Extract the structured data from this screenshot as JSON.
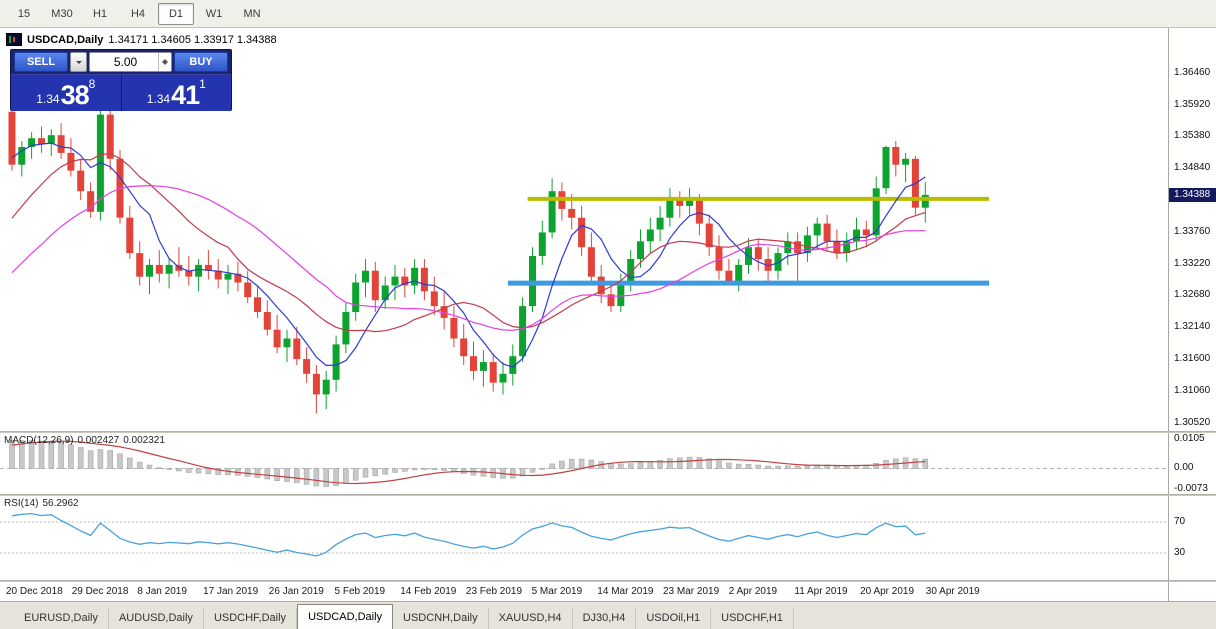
{
  "toolbar": {
    "timeframes": [
      {
        "label": "15",
        "active": false
      },
      {
        "label": "M30",
        "active": false
      },
      {
        "label": "H1",
        "active": false
      },
      {
        "label": "H4",
        "active": false
      },
      {
        "label": "D1",
        "active": true
      },
      {
        "label": "W1",
        "active": false
      },
      {
        "label": "MN",
        "active": false
      }
    ]
  },
  "chart": {
    "symbol_period": "USDCAD,Daily",
    "ohlc": "1.34171 1.34605 1.33917 1.34388"
  },
  "trade_panel": {
    "sell_label": "SELL",
    "buy_label": "BUY",
    "volume": "5.00",
    "sell_price": {
      "small": "1.34",
      "big": "38",
      "sup": "8"
    },
    "buy_price": {
      "small": "1.34",
      "big": "41",
      "sup": "1"
    },
    "colors": {
      "panel": "#1c2470",
      "button": "#3b63d6",
      "price_bg": "#2434ae"
    }
  },
  "price_axis": {
    "labels": [
      "1.36460",
      "1.35920",
      "1.35380",
      "1.34840",
      "1.34300",
      "1.33760",
      "1.33220",
      "1.32680",
      "1.32140",
      "1.31600",
      "1.31060",
      "1.30520"
    ],
    "current": "1.34388"
  },
  "macd": {
    "name": "MACD(12,26,9)",
    "value": "0.002427",
    "signal": "0.002321",
    "axis": [
      {
        "label": "0.0105",
        "v": 0.0105
      },
      {
        "label": "0.00",
        "v": 0
      },
      {
        "label": "-0.0073",
        "v": -0.0073
      }
    ]
  },
  "rsi": {
    "name": "RSI(14)",
    "value": "56.2962",
    "levels": [
      {
        "label": "70",
        "v": 70
      },
      {
        "label": "30",
        "v": 30
      }
    ]
  },
  "date_axis": {
    "labels": [
      "20 Dec 2018",
      "29 Dec 2018",
      "8 Jan 2019",
      "17 Jan 2019",
      "26 Jan 2019",
      "5 Feb 2019",
      "14 Feb 2019",
      "23 Feb 2019",
      "5 Mar 2019",
      "14 Mar 2019",
      "23 Mar 2019",
      "2 Apr 2019",
      "11 Apr 2019",
      "20 Apr 2019",
      "30 Apr 2019"
    ]
  },
  "tabs": [
    {
      "label": "EURUSD,Daily",
      "active": false
    },
    {
      "label": "AUDUSD,Daily",
      "active": false
    },
    {
      "label": "USDCHF,Daily",
      "active": false
    },
    {
      "label": "USDCAD,Daily",
      "active": true
    },
    {
      "label": "USDCNH,Daily",
      "active": false
    },
    {
      "label": "XAUUSD,H4",
      "active": false
    },
    {
      "label": "DJ30,H4",
      "active": false
    },
    {
      "label": "USDOil,H1",
      "active": false
    },
    {
      "label": "USDCHF,H1",
      "active": false
    }
  ],
  "chart_data": {
    "type": "candlestick",
    "symbol": "USDCAD",
    "timeframe": "Daily",
    "title": "USDCAD,Daily",
    "date_range": [
      "20 Dec 2018",
      "30 Apr 2019"
    ],
    "grid": false,
    "y_range": [
      1.3038,
      1.3722
    ],
    "colors": {
      "up": "#0ca32e",
      "down": "#e2443a"
    },
    "candles": [
      [
        1.358,
        1.359,
        1.348,
        1.349
      ],
      [
        1.349,
        1.353,
        1.347,
        1.352
      ],
      [
        1.352,
        1.3545,
        1.35,
        1.3535
      ],
      [
        1.3535,
        1.3555,
        1.351,
        1.3525
      ],
      [
        1.3525,
        1.355,
        1.3505,
        1.354
      ],
      [
        1.354,
        1.356,
        1.35,
        1.351
      ],
      [
        1.351,
        1.3535,
        1.347,
        1.348
      ],
      [
        1.348,
        1.35,
        1.343,
        1.3445
      ],
      [
        1.3445,
        1.346,
        1.34,
        1.341
      ],
      [
        1.341,
        1.3585,
        1.3395,
        1.3575
      ],
      [
        1.3575,
        1.359,
        1.348,
        1.35
      ],
      [
        1.35,
        1.3515,
        1.339,
        1.34
      ],
      [
        1.34,
        1.342,
        1.333,
        1.334
      ],
      [
        1.334,
        1.336,
        1.3285,
        1.33
      ],
      [
        1.33,
        1.333,
        1.327,
        1.332
      ],
      [
        1.332,
        1.3345,
        1.329,
        1.3305
      ],
      [
        1.3305,
        1.333,
        1.328,
        1.332
      ],
      [
        1.332,
        1.335,
        1.33,
        1.331
      ],
      [
        1.331,
        1.3335,
        1.3285,
        1.33
      ],
      [
        1.33,
        1.333,
        1.3275,
        1.332
      ],
      [
        1.332,
        1.3345,
        1.3295,
        1.331
      ],
      [
        1.331,
        1.333,
        1.328,
        1.3295
      ],
      [
        1.3295,
        1.332,
        1.327,
        1.3305
      ],
      [
        1.3305,
        1.3325,
        1.3275,
        1.329
      ],
      [
        1.329,
        1.331,
        1.3255,
        1.3265
      ],
      [
        1.3265,
        1.3285,
        1.323,
        1.324
      ],
      [
        1.324,
        1.326,
        1.32,
        1.321
      ],
      [
        1.321,
        1.3235,
        1.317,
        1.318
      ],
      [
        1.318,
        1.321,
        1.3155,
        1.3195
      ],
      [
        1.3195,
        1.3215,
        1.315,
        1.316
      ],
      [
        1.316,
        1.318,
        1.312,
        1.3135
      ],
      [
        1.3135,
        1.315,
        1.3068,
        1.31
      ],
      [
        1.31,
        1.314,
        1.3075,
        1.3125
      ],
      [
        1.3125,
        1.32,
        1.3105,
        1.3185
      ],
      [
        1.3185,
        1.3255,
        1.317,
        1.324
      ],
      [
        1.324,
        1.3305,
        1.3225,
        1.329
      ],
      [
        1.329,
        1.333,
        1.3265,
        1.331
      ],
      [
        1.331,
        1.3325,
        1.324,
        1.326
      ],
      [
        1.326,
        1.33,
        1.3245,
        1.3285
      ],
      [
        1.3285,
        1.332,
        1.326,
        1.33
      ],
      [
        1.33,
        1.3315,
        1.3265,
        1.3285
      ],
      [
        1.3285,
        1.333,
        1.327,
        1.3315
      ],
      [
        1.3315,
        1.333,
        1.326,
        1.3275
      ],
      [
        1.3275,
        1.33,
        1.3235,
        1.325
      ],
      [
        1.325,
        1.3275,
        1.321,
        1.323
      ],
      [
        1.323,
        1.325,
        1.318,
        1.3195
      ],
      [
        1.3195,
        1.322,
        1.315,
        1.3165
      ],
      [
        1.3165,
        1.319,
        1.3125,
        1.314
      ],
      [
        1.314,
        1.3175,
        1.3113,
        1.3155
      ],
      [
        1.3155,
        1.317,
        1.3105,
        1.312
      ],
      [
        1.312,
        1.3155,
        1.31,
        1.3135
      ],
      [
        1.3135,
        1.3185,
        1.3115,
        1.3165
      ],
      [
        1.3165,
        1.3265,
        1.3155,
        1.325
      ],
      [
        1.325,
        1.335,
        1.324,
        1.3335
      ],
      [
        1.3335,
        1.3395,
        1.332,
        1.3375
      ],
      [
        1.3375,
        1.3467,
        1.3365,
        1.3445
      ],
      [
        1.3445,
        1.346,
        1.3395,
        1.3415
      ],
      [
        1.3415,
        1.344,
        1.338,
        1.34
      ],
      [
        1.34,
        1.342,
        1.3335,
        1.335
      ],
      [
        1.335,
        1.3375,
        1.3285,
        1.33
      ],
      [
        1.33,
        1.332,
        1.3255,
        1.327
      ],
      [
        1.327,
        1.329,
        1.324,
        1.325
      ],
      [
        1.325,
        1.3305,
        1.324,
        1.329
      ],
      [
        1.329,
        1.3345,
        1.3275,
        1.333
      ],
      [
        1.333,
        1.338,
        1.3315,
        1.336
      ],
      [
        1.336,
        1.34,
        1.334,
        1.338
      ],
      [
        1.338,
        1.342,
        1.336,
        1.34
      ],
      [
        1.34,
        1.345,
        1.3385,
        1.343
      ],
      [
        1.343,
        1.3445,
        1.34,
        1.342
      ],
      [
        1.342,
        1.345,
        1.3405,
        1.343
      ],
      [
        1.343,
        1.344,
        1.337,
        1.339
      ],
      [
        1.339,
        1.3405,
        1.3335,
        1.335
      ],
      [
        1.335,
        1.337,
        1.3295,
        1.331
      ],
      [
        1.331,
        1.333,
        1.3285,
        1.329
      ],
      [
        1.329,
        1.333,
        1.3275,
        1.332
      ],
      [
        1.332,
        1.3365,
        1.3305,
        1.335
      ],
      [
        1.335,
        1.3365,
        1.331,
        1.333
      ],
      [
        1.333,
        1.335,
        1.329,
        1.331
      ],
      [
        1.331,
        1.335,
        1.3295,
        1.334
      ],
      [
        1.334,
        1.3375,
        1.332,
        1.336
      ],
      [
        1.336,
        1.3375,
        1.329,
        1.334
      ],
      [
        1.334,
        1.3385,
        1.3325,
        1.337
      ],
      [
        1.337,
        1.34,
        1.335,
        1.339
      ],
      [
        1.339,
        1.3405,
        1.3345,
        1.336
      ],
      [
        1.336,
        1.338,
        1.333,
        1.334
      ],
      [
        1.334,
        1.3375,
        1.3325,
        1.336
      ],
      [
        1.336,
        1.34,
        1.3345,
        1.338
      ],
      [
        1.338,
        1.3395,
        1.335,
        1.337
      ],
      [
        1.337,
        1.347,
        1.336,
        1.345
      ],
      [
        1.345,
        1.3522,
        1.344,
        1.352
      ],
      [
        1.352,
        1.353,
        1.347,
        1.349
      ],
      [
        1.349,
        1.351,
        1.346,
        1.35
      ],
      [
        1.35,
        1.3505,
        1.3405,
        1.3417
      ],
      [
        1.34171,
        1.34605,
        1.33917,
        1.34388
      ]
    ],
    "pre_history_closes": [
      1.308,
      1.3095,
      1.3085,
      1.3105,
      1.312,
      1.311,
      1.313,
      1.3125,
      1.3145,
      1.316,
      1.315,
      1.317,
      1.3185,
      1.318,
      1.32,
      1.322,
      1.324,
      1.3235,
      1.326,
      1.328,
      1.33,
      1.333,
      1.336,
      1.339,
      1.342,
      1.345,
      1.348,
      1.351,
      1.353,
      1.355
    ],
    "moving_averages": [
      {
        "period": 6,
        "color": "#2e3bd0"
      },
      {
        "period": 14,
        "color": "#c23b4a"
      },
      {
        "period": 24,
        "color": "#e33fe3"
      }
    ],
    "levels": [
      {
        "name": "resistance-line",
        "price": 1.3432,
        "color": "#b9bd00",
        "width": 4,
        "x1_bar": 52.5,
        "x2_bar": 99.5
      },
      {
        "name": "support-line",
        "price": 1.3289,
        "color": "#3e9bdf",
        "width": 5,
        "x1_bar": 50.5,
        "x2_bar": 99.5
      }
    ],
    "macd": {
      "fast": 12,
      "slow": 26,
      "signal": 9,
      "histogram_color": "#c8c8c8",
      "signal_color": "#c04343"
    },
    "rsi": {
      "period": 14,
      "color": "#4aa2dd",
      "levels": [
        70,
        30
      ]
    }
  }
}
